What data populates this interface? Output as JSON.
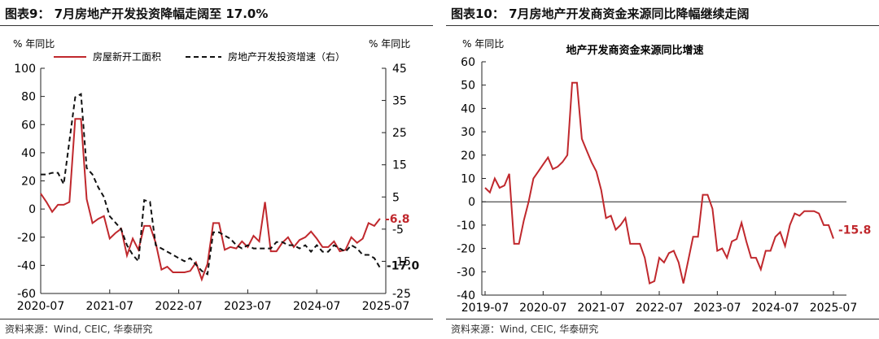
{
  "left_panel": {
    "title": "图表9： 7月房地产开发投资降幅走阔至 17.0%",
    "source": "资料来源：Wind, CEIC, 华泰研究"
  },
  "right_panel": {
    "title": "图表10： 7月房地产开发商资金来源同比降幅继续走阔",
    "source": "资料来源：Wind, CEIC, 华泰研究"
  },
  "chart_data": [
    {
      "type": "line",
      "y_unit_left": "% 年同比",
      "y_unit_right": "% 年同比",
      "ylim_left": [
        -60,
        100
      ],
      "ylim_right": [
        -25,
        45
      ],
      "yticks_left": [
        -60,
        -40,
        -20,
        0,
        20,
        40,
        60,
        80,
        100
      ],
      "yticks_right": [
        -25,
        -15,
        -5,
        5,
        15,
        25,
        35,
        45
      ],
      "xtick_labels": [
        "2020-07",
        "2021-07",
        "2022-07",
        "2023-07",
        "2024-07",
        "2025-07"
      ],
      "legend_position": "top",
      "grid": false,
      "series": [
        {
          "name": "房屋新开工面积",
          "axis": "left",
          "color": "#c0282d",
          "style": "solid",
          "end_label": "-6.8",
          "points": [
            [
              "2020-07",
              11
            ],
            [
              "2020-08",
              5
            ],
            [
              "2020-09",
              -2
            ],
            [
              "2020-10",
              3
            ],
            [
              "2020-11",
              3
            ],
            [
              "2020-12",
              5
            ],
            [
              "2021-01",
              64
            ],
            [
              "2021-02",
              64
            ],
            [
              "2021-03",
              7
            ],
            [
              "2021-04",
              -10
            ],
            [
              "2021-05",
              -7
            ],
            [
              "2021-06",
              -5
            ],
            [
              "2021-07",
              -21
            ],
            [
              "2021-08",
              -17
            ],
            [
              "2021-09",
              -14
            ],
            [
              "2021-10",
              -33
            ],
            [
              "2021-11",
              -21
            ],
            [
              "2021-12",
              -29
            ],
            [
              "2022-01",
              -12
            ],
            [
              "2022-02",
              -12
            ],
            [
              "2022-03",
              -24
            ],
            [
              "2022-04",
              -43
            ],
            [
              "2022-05",
              -41
            ],
            [
              "2022-06",
              -45
            ],
            [
              "2022-07",
              -45
            ],
            [
              "2022-08",
              -45
            ],
            [
              "2022-09",
              -44
            ],
            [
              "2022-10",
              -38
            ],
            [
              "2022-11",
              -50
            ],
            [
              "2022-12",
              -39
            ],
            [
              "2023-01",
              -10
            ],
            [
              "2023-02",
              -10
            ],
            [
              "2023-03",
              -29
            ],
            [
              "2023-04",
              -27
            ],
            [
              "2023-05",
              -28
            ],
            [
              "2023-06",
              -23
            ],
            [
              "2023-07",
              -27
            ],
            [
              "2023-08",
              -19
            ],
            [
              "2023-09",
              -23
            ],
            [
              "2023-10",
              5
            ],
            [
              "2023-11",
              -30
            ],
            [
              "2023-12",
              -30
            ],
            [
              "2024-01",
              -24
            ],
            [
              "2024-02",
              -20
            ],
            [
              "2024-03",
              -27
            ],
            [
              "2024-04",
              -22
            ],
            [
              "2024-05",
              -20
            ],
            [
              "2024-06",
              -16
            ],
            [
              "2024-07",
              -21
            ],
            [
              "2024-08",
              -27
            ],
            [
              "2024-09",
              -27
            ],
            [
              "2024-10",
              -23
            ],
            [
              "2024-11",
              -30
            ],
            [
              "2024-12",
              -29
            ],
            [
              "2025-01",
              -20
            ],
            [
              "2025-02",
              -24
            ],
            [
              "2025-03",
              -21
            ],
            [
              "2025-04",
              -10
            ],
            [
              "2025-05",
              -12
            ],
            [
              "2025-06",
              -6.8
            ]
          ]
        },
        {
          "name": "房地产开发投资增速（右）",
          "axis": "right",
          "color": "#111111",
          "style": "dashed",
          "end_label": "-17.0",
          "points": [
            [
              "2020-07",
              12
            ],
            [
              "2020-08",
              12
            ],
            [
              "2020-09",
              12.5
            ],
            [
              "2020-10",
              12.5
            ],
            [
              "2020-11",
              9
            ],
            [
              "2021-01",
              36
            ],
            [
              "2021-02",
              37
            ],
            [
              "2021-03",
              14
            ],
            [
              "2021-04",
              12
            ],
            [
              "2021-05",
              8
            ],
            [
              "2021-06",
              5
            ],
            [
              "2021-07",
              -1
            ],
            [
              "2021-08",
              -3
            ],
            [
              "2021-09",
              -5
            ],
            [
              "2021-10",
              -10
            ],
            [
              "2021-11",
              -13
            ],
            [
              "2021-12",
              -15
            ],
            [
              "2022-01",
              4
            ],
            [
              "2022-02",
              3.5
            ],
            [
              "2022-03",
              -10
            ],
            [
              "2022-04",
              -11
            ],
            [
              "2022-05",
              -12
            ],
            [
              "2022-06",
              -13
            ],
            [
              "2022-07",
              -14
            ],
            [
              "2022-08",
              -15
            ],
            [
              "2022-09",
              -14
            ],
            [
              "2022-10",
              -16
            ],
            [
              "2022-11",
              -18
            ],
            [
              "2022-12",
              -19
            ],
            [
              "2023-01",
              -6
            ],
            [
              "2023-02",
              -6
            ],
            [
              "2023-03",
              -7
            ],
            [
              "2023-04",
              -8
            ],
            [
              "2023-05",
              -10
            ],
            [
              "2023-06",
              -11
            ],
            [
              "2023-07",
              -10
            ],
            [
              "2023-08",
              -11
            ],
            [
              "2023-09",
              -11
            ],
            [
              "2023-10",
              -11
            ],
            [
              "2023-11",
              -11
            ],
            [
              "2023-12",
              -9
            ],
            [
              "2024-01",
              -9
            ],
            [
              "2024-02",
              -10
            ],
            [
              "2024-03",
              -10
            ],
            [
              "2024-04",
              -11
            ],
            [
              "2024-05",
              -10
            ],
            [
              "2024-06",
              -12
            ],
            [
              "2024-07",
              -10
            ],
            [
              "2024-08",
              -12
            ],
            [
              "2024-09",
              -12
            ],
            [
              "2024-10",
              -10
            ],
            [
              "2024-11",
              -11
            ],
            [
              "2024-12",
              -12
            ],
            [
              "2025-01",
              -10
            ],
            [
              "2025-02",
              -11
            ],
            [
              "2025-03",
              -13
            ],
            [
              "2025-04",
              -13
            ],
            [
              "2025-05",
              -14
            ],
            [
              "2025-06",
              -17
            ]
          ]
        }
      ]
    },
    {
      "type": "line",
      "title": "地产开发商资金来源同比增速",
      "y_unit": "% 年同比",
      "ylim": [
        -40,
        60
      ],
      "yticks": [
        -40,
        -30,
        -20,
        -10,
        0,
        10,
        20,
        30,
        40,
        50,
        60
      ],
      "xtick_labels": [
        "2019-07",
        "2020-07",
        "2021-07",
        "2022-07",
        "2023-07",
        "2024-07",
        "2025-07"
      ],
      "grid": false,
      "series": [
        {
          "color": "#c0282d",
          "end_label": "-15.8",
          "points": [
            [
              "2019-07",
              6
            ],
            [
              "2019-08",
              4
            ],
            [
              "2019-09",
              10
            ],
            [
              "2019-10",
              6
            ],
            [
              "2019-11",
              7
            ],
            [
              "2019-12",
              12
            ],
            [
              "2020-01",
              -18
            ],
            [
              "2020-02",
              -18
            ],
            [
              "2020-03",
              -8
            ],
            [
              "2020-04",
              0
            ],
            [
              "2020-05",
              10
            ],
            [
              "2020-06",
              13
            ],
            [
              "2020-07",
              16
            ],
            [
              "2020-08",
              19
            ],
            [
              "2020-09",
              14
            ],
            [
              "2020-10",
              15
            ],
            [
              "2020-11",
              17
            ],
            [
              "2020-12",
              20
            ],
            [
              "2021-01",
              51
            ],
            [
              "2021-02",
              51
            ],
            [
              "2021-03",
              27
            ],
            [
              "2021-04",
              22
            ],
            [
              "2021-05",
              17
            ],
            [
              "2021-06",
              13
            ],
            [
              "2021-07",
              5
            ],
            [
              "2021-08",
              -7
            ],
            [
              "2021-09",
              -6
            ],
            [
              "2021-10",
              -12
            ],
            [
              "2021-11",
              -10
            ],
            [
              "2021-12",
              -7
            ],
            [
              "2022-01",
              -18
            ],
            [
              "2022-02",
              -18
            ],
            [
              "2022-03",
              -18
            ],
            [
              "2022-04",
              -24
            ],
            [
              "2022-05",
              -35
            ],
            [
              "2022-06",
              -34
            ],
            [
              "2022-07",
              -24
            ],
            [
              "2022-08",
              -26
            ],
            [
              "2022-09",
              -22
            ],
            [
              "2022-10",
              -21
            ],
            [
              "2022-11",
              -26
            ],
            [
              "2022-12",
              -35
            ],
            [
              "2023-01",
              -25
            ],
            [
              "2023-02",
              -15
            ],
            [
              "2023-03",
              -15
            ],
            [
              "2023-04",
              3
            ],
            [
              "2023-05",
              3
            ],
            [
              "2023-06",
              -3
            ],
            [
              "2023-07",
              -21
            ],
            [
              "2023-08",
              -20
            ],
            [
              "2023-09",
              -24
            ],
            [
              "2023-10",
              -17
            ],
            [
              "2023-11",
              -16
            ],
            [
              "2023-12",
              -9
            ],
            [
              "2024-01",
              -17
            ],
            [
              "2024-02",
              -24
            ],
            [
              "2024-03",
              -24
            ],
            [
              "2024-04",
              -29
            ],
            [
              "2024-05",
              -21
            ],
            [
              "2024-06",
              -21
            ],
            [
              "2024-07",
              -15
            ],
            [
              "2024-08",
              -13
            ],
            [
              "2024-09",
              -19
            ],
            [
              "2024-10",
              -10
            ],
            [
              "2024-11",
              -5
            ],
            [
              "2024-12",
              -6
            ],
            [
              "2025-01",
              -4
            ],
            [
              "2025-02",
              -4
            ],
            [
              "2025-03",
              -4
            ],
            [
              "2025-04",
              -5
            ],
            [
              "2025-05",
              -10
            ],
            [
              "2025-06",
              -10
            ],
            [
              "2025-07",
              -15.8
            ]
          ]
        }
      ]
    }
  ]
}
